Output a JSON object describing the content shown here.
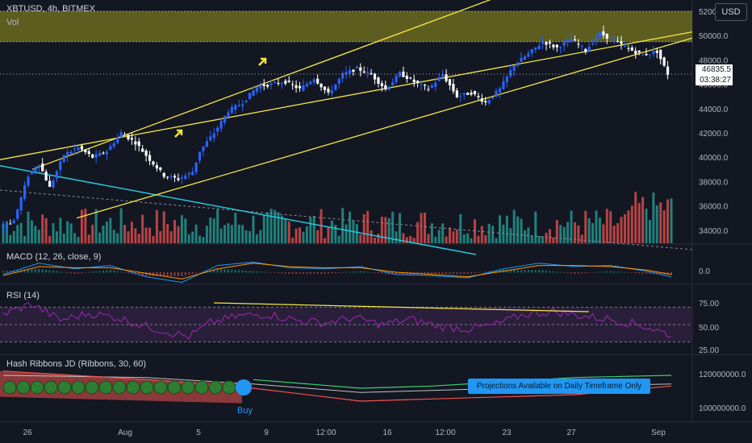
{
  "header": {
    "symbol": "XBTUSD, 4h, BITMEX",
    "vol_label": "Vol",
    "currency": "USD"
  },
  "last_price": {
    "value": "46835.5",
    "countdown": "03:38:27"
  },
  "panels": {
    "macd": {
      "label": "MACD (12, 26, close, 9)",
      "ticks": [
        "0.0"
      ]
    },
    "rsi": {
      "label": "RSI (14)",
      "ticks": [
        "75.00",
        "50.00",
        "25.00"
      ]
    },
    "hash": {
      "label": "Hash Ribbons JD (Ribbons, 30, 60)",
      "ticks": [
        "120000000.0",
        "100000000.0"
      ],
      "tooltip": "Projections Available on Daily Timeframe Only",
      "buy_label": "Buy"
    }
  },
  "colors": {
    "background": "#131722",
    "bull": "#2962ff",
    "bear": "#ffffff",
    "vol_up": "#26a69a",
    "vol_down": "#ef5350",
    "channel": "#f5e642",
    "trendline": "#26c6da",
    "resistance_zone": "#6b6a1f",
    "rsi_line": "#9c27b0",
    "macd_line": "#2196f3",
    "signal_line": "#ff9800",
    "hash_green": "#3bd16f",
    "hash_red": "#ef5350"
  },
  "annotations": {
    "arrows": [
      "up-right-arrow",
      "up-right-arrow"
    ]
  },
  "chart_data": {
    "type": "candlestick",
    "title": "XBTUSD, 4h, BITMEX",
    "x_ticks": [
      "26",
      "Aug",
      "5",
      "9",
      "12:00",
      "16",
      "12:00",
      "23",
      "27",
      "Sep"
    ],
    "y_ticks": [
      "52000.0",
      "50000.0",
      "48000.0",
      "46000.0",
      "44000.0",
      "42000.0",
      "40000.0",
      "38000.0",
      "36000.0",
      "34000.0"
    ],
    "ylim": [
      32000,
      52000
    ],
    "resistance_zone": [
      49500,
      52000
    ],
    "price_path": [
      [
        0,
        34200
      ],
      [
        4,
        34800
      ],
      [
        8,
        38500
      ],
      [
        11,
        39500
      ],
      [
        14,
        37500
      ],
      [
        18,
        40200
      ],
      [
        22,
        40800
      ],
      [
        26,
        40000
      ],
      [
        30,
        40500
      ],
      [
        34,
        42000
      ],
      [
        38,
        41200
      ],
      [
        42,
        39800
      ],
      [
        46,
        38500
      ],
      [
        50,
        38200
      ],
      [
        54,
        38800
      ],
      [
        56,
        40500
      ],
      [
        60,
        42000
      ],
      [
        64,
        43800
      ],
      [
        68,
        44500
      ],
      [
        72,
        45800
      ],
      [
        76,
        46000
      ],
      [
        80,
        46200
      ],
      [
        84,
        45600
      ],
      [
        88,
        46500
      ],
      [
        92,
        45200
      ],
      [
        96,
        46800
      ],
      [
        100,
        47300
      ],
      [
        104,
        46800
      ],
      [
        108,
        45600
      ],
      [
        112,
        46900
      ],
      [
        116,
        46200
      ],
      [
        120,
        45600
      ],
      [
        124,
        46800
      ],
      [
        128,
        45000
      ],
      [
        132,
        45300
      ],
      [
        136,
        44500
      ],
      [
        140,
        45600
      ],
      [
        144,
        47600
      ],
      [
        148,
        48500
      ],
      [
        152,
        49500
      ],
      [
        156,
        49000
      ],
      [
        160,
        49700
      ],
      [
        164,
        48800
      ],
      [
        168,
        50200
      ],
      [
        172,
        49600
      ],
      [
        176,
        48900
      ],
      [
        180,
        48400
      ],
      [
        184,
        48700
      ],
      [
        187,
        46835
      ]
    ],
    "rsi_path": [
      [
        0,
        62
      ],
      [
        8,
        74
      ],
      [
        16,
        55
      ],
      [
        24,
        63
      ],
      [
        32,
        58
      ],
      [
        40,
        48
      ],
      [
        48,
        40
      ],
      [
        52,
        36
      ],
      [
        58,
        52
      ],
      [
        66,
        60
      ],
      [
        74,
        62
      ],
      [
        82,
        55
      ],
      [
        90,
        52
      ],
      [
        98,
        58
      ],
      [
        106,
        50
      ],
      [
        114,
        56
      ],
      [
        122,
        48
      ],
      [
        130,
        45
      ],
      [
        138,
        50
      ],
      [
        146,
        62
      ],
      [
        154,
        65
      ],
      [
        162,
        60
      ],
      [
        170,
        56
      ],
      [
        178,
        50
      ],
      [
        187,
        38
      ]
    ],
    "macd": {
      "macd_path": [
        [
          0,
          -2
        ],
        [
          10,
          8
        ],
        [
          20,
          3
        ],
        [
          30,
          6
        ],
        [
          40,
          -4
        ],
        [
          50,
          -9
        ],
        [
          60,
          6
        ],
        [
          70,
          9
        ],
        [
          80,
          4
        ],
        [
          90,
          3
        ],
        [
          100,
          5
        ],
        [
          110,
          -2
        ],
        [
          120,
          -3
        ],
        [
          130,
          -5
        ],
        [
          140,
          3
        ],
        [
          150,
          8
        ],
        [
          160,
          5
        ],
        [
          170,
          6
        ],
        [
          180,
          1
        ],
        [
          187,
          -4
        ]
      ],
      "signal_path": [
        [
          0,
          -3
        ],
        [
          10,
          5
        ],
        [
          20,
          4
        ],
        [
          30,
          4
        ],
        [
          40,
          -1
        ],
        [
          50,
          -6
        ],
        [
          60,
          3
        ],
        [
          70,
          8
        ],
        [
          80,
          5
        ],
        [
          90,
          4
        ],
        [
          100,
          4
        ],
        [
          110,
          0
        ],
        [
          120,
          -2
        ],
        [
          130,
          -4
        ],
        [
          140,
          1
        ],
        [
          150,
          6
        ],
        [
          160,
          6
        ],
        [
          170,
          5
        ],
        [
          180,
          2
        ],
        [
          187,
          -2
        ]
      ]
    },
    "hash_ribbons": {
      "green_path": [
        [
          0,
          117
        ],
        [
          40,
          115
        ],
        [
          70,
          114
        ],
        [
          100,
          110
        ],
        [
          120,
          111
        ],
        [
          140,
          113
        ],
        [
          160,
          115
        ],
        [
          187,
          116
        ]
      ],
      "red_path": [
        [
          0,
          118
        ],
        [
          40,
          114
        ],
        [
          70,
          110
        ],
        [
          100,
          104
        ],
        [
          120,
          105
        ],
        [
          140,
          106
        ],
        [
          160,
          107
        ],
        [
          187,
          111
        ]
      ],
      "gray_path": [
        [
          0,
          116
        ],
        [
          40,
          115
        ],
        [
          70,
          112
        ],
        [
          100,
          108
        ],
        [
          120,
          109
        ],
        [
          140,
          110
        ],
        [
          160,
          111
        ],
        [
          187,
          112
        ]
      ],
      "ylim": [
        95,
        125
      ]
    }
  }
}
